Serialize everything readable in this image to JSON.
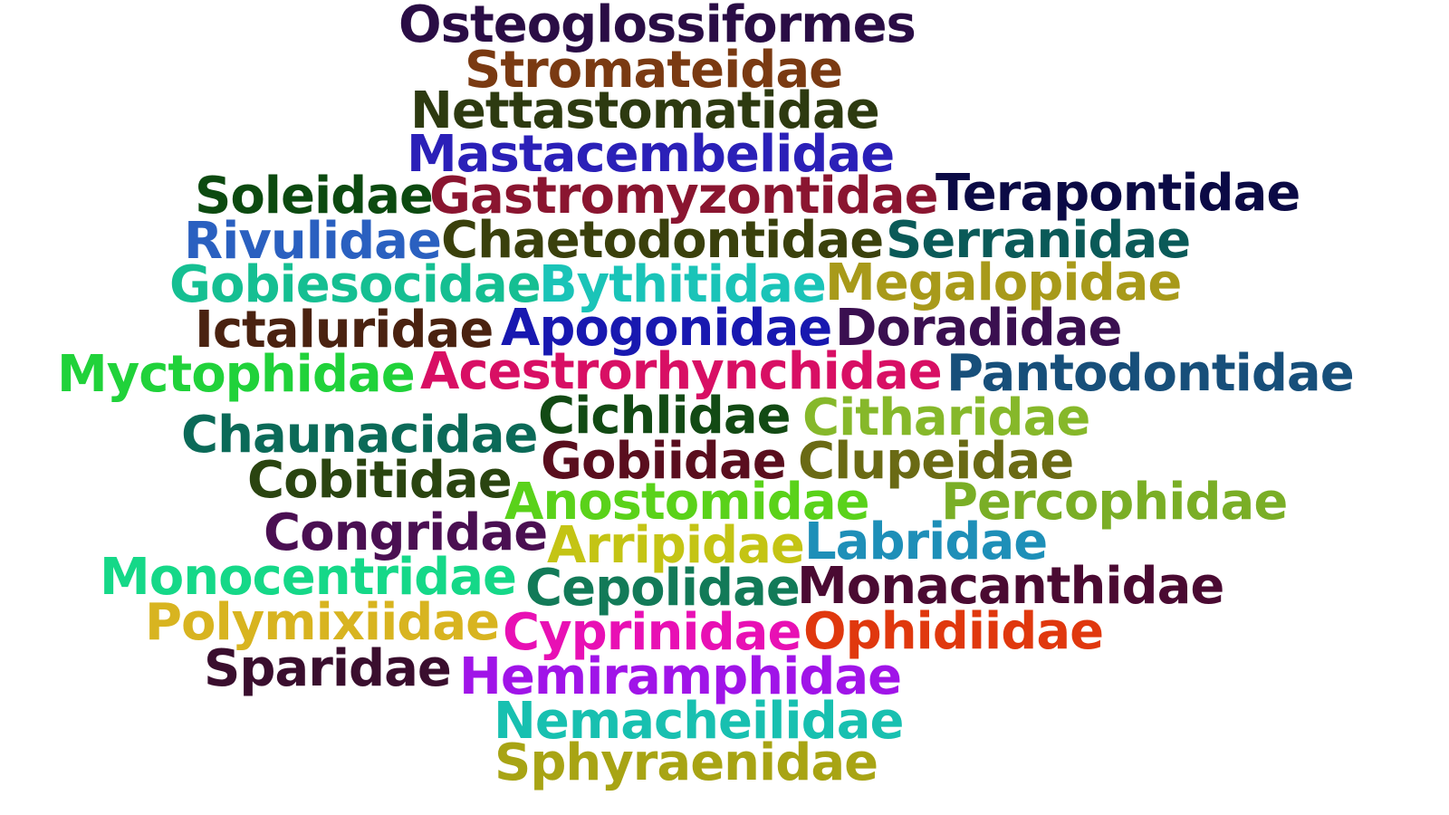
{
  "words": [
    {
      "text": "Osteoglossiformes",
      "color": "#2a0d45"
    },
    {
      "text": "Stromateidae",
      "color": "#7a3a12"
    },
    {
      "text": "Nettastomatidae",
      "color": "#2d3a10"
    },
    {
      "text": "Mastacembelidae",
      "color": "#2b20b8"
    },
    {
      "text": "Soleidae",
      "color": "#0c4a10"
    },
    {
      "text": "Gastromyzontidae",
      "color": "#8a1530"
    },
    {
      "text": "Terapontidae",
      "color": "#0b0a45"
    },
    {
      "text": "Rivulidae",
      "color": "#2a60c0"
    },
    {
      "text": "Chaetodontidae",
      "color": "#3a400c"
    },
    {
      "text": "Serranidae",
      "color": "#0a5a58"
    },
    {
      "text": "Gobiesocidae",
      "color": "#15bf92"
    },
    {
      "text": "Bythitidae",
      "color": "#1ac4b8"
    },
    {
      "text": "Megalopidae",
      "color": "#a89a1a"
    },
    {
      "text": "Ictaluridae",
      "color": "#4a2210"
    },
    {
      "text": "Apogonidae",
      "color": "#1818b0"
    },
    {
      "text": "Doradidae",
      "color": "#3a0f50"
    },
    {
      "text": "Myctophidae",
      "color": "#20d23a"
    },
    {
      "text": "Acestrorhynchidae",
      "color": "#d80f64"
    },
    {
      "text": "Pantodontidae",
      "color": "#174f7a"
    },
    {
      "text": "Chaunacidae",
      "color": "#0b6a58"
    },
    {
      "text": "Cichlidae",
      "color": "#124a14"
    },
    {
      "text": "Citharidae",
      "color": "#86b82a"
    },
    {
      "text": "Gobiidae",
      "color": "#5a0e1e"
    },
    {
      "text": "Clupeidae",
      "color": "#6a6a14"
    },
    {
      "text": "Cobitidae",
      "color": "#2a4410"
    },
    {
      "text": "Anostomidae",
      "color": "#5ad21a"
    },
    {
      "text": "Percophidae",
      "color": "#7aae26"
    },
    {
      "text": "Congridae",
      "color": "#4a0f52"
    },
    {
      "text": "Arripidae",
      "color": "#c4c414"
    },
    {
      "text": "Labridae",
      "color": "#1e8fb8"
    },
    {
      "text": "Monocentridae",
      "color": "#15d888"
    },
    {
      "text": "Cepolidae",
      "color": "#127a58"
    },
    {
      "text": "Monacanthidae",
      "color": "#4a0a32"
    },
    {
      "text": "Polymixiidae",
      "color": "#d8b420"
    },
    {
      "text": "Cyprinidae",
      "color": "#e810b4"
    },
    {
      "text": "Ophidiidae",
      "color": "#e0380e"
    },
    {
      "text": "Sparidae",
      "color": "#3a0e2e"
    },
    {
      "text": "Hemiramphidae",
      "color": "#a014e8"
    },
    {
      "text": "Nemacheilidae",
      "color": "#18c0b0"
    },
    {
      "text": "Sphyraenidae",
      "color": "#a8a414"
    }
  ]
}
